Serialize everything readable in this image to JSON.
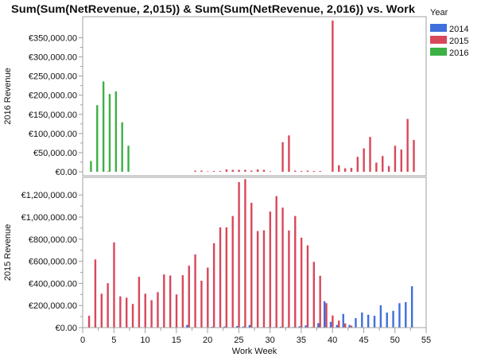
{
  "chart_data": {
    "type": "bar",
    "title": "Sum(Sum(NetRevenue, 2,015)) & Sum(Sum(NetRevenue, 2,016)) vs. Work",
    "xlabel": "Work Week",
    "xlim": [
      0,
      55
    ],
    "xticks": [
      "0",
      "5",
      "10",
      "15",
      "20",
      "25",
      "30",
      "35",
      "40",
      "45",
      "50",
      "55"
    ],
    "legend": {
      "title": "Year",
      "placement": "right",
      "items": [
        {
          "label": "2014",
          "color": "#3f6fdc"
        },
        {
          "label": "2015",
          "color": "#d8475a"
        },
        {
          "label": "2016",
          "color": "#3cb044"
        }
      ]
    },
    "panels": [
      {
        "ylabel": "2016 Revenue",
        "ylim": [
          0,
          405000
        ],
        "yticks": [
          "€0.00",
          "€50,000.00",
          "€100,000.00",
          "€150,000.00",
          "€200,000.00",
          "€250,000.00",
          "€300,000.00",
          "€350,000.00"
        ],
        "ytick_values": [
          0,
          50000,
          100000,
          150000,
          200000,
          250000,
          300000,
          350000
        ],
        "series": [
          {
            "name": "2015",
            "color": "#d8475a",
            "offset": 0,
            "x": [
              4,
              18,
              19,
              20,
              21,
              22,
              23,
              24,
              25,
              26,
              27,
              28,
              29,
              30,
              32,
              33,
              34,
              35,
              36,
              37,
              38,
              40,
              41,
              42,
              43,
              44,
              45,
              46,
              47,
              48,
              49,
              50,
              51,
              52,
              53
            ],
            "values": [
              1000,
              3000,
              3000,
              1000,
              2000,
              2000,
              6000,
              5000,
              5000,
              5000,
              3000,
              6000,
              5000,
              1000,
              77000,
              95000,
              3000,
              2000,
              3000,
              2000,
              2000,
              395000,
              17000,
              9000,
              10000,
              39000,
              61000,
              91000,
              24000,
              41000,
              15000,
              68000,
              58000,
              138000,
              83000
            ]
          },
          {
            "name": "2016",
            "color": "#3cb044",
            "offset": 0.3,
            "x": [
              1,
              2,
              3,
              4,
              5,
              6,
              7
            ],
            "values": [
              28000,
              174000,
              236000,
              203000,
              210000,
              129000,
              68000
            ]
          }
        ]
      },
      {
        "ylabel": "2015 Revenue",
        "ylim": [
          0,
          1360000
        ],
        "yticks": [
          "€0.00",
          "€200,000.00",
          "€400,000.00",
          "€600,000.00",
          "€800,000.00",
          "€1,000,000.00",
          "€1,200,000.00"
        ],
        "ytick_values": [
          0,
          200000,
          400000,
          600000,
          800000,
          1000000,
          1200000
        ],
        "series": [
          {
            "name": "2015",
            "color": "#d8475a",
            "offset": 0,
            "x": [
              1,
              2,
              3,
              4,
              5,
              6,
              7,
              8,
              9,
              10,
              11,
              12,
              13,
              14,
              15,
              16,
              17,
              18,
              19,
              20,
              21,
              22,
              23,
              24,
              25,
              26,
              27,
              28,
              29,
              30,
              31,
              32,
              33,
              34,
              35,
              36,
              37,
              38,
              39,
              40,
              41,
              42,
              43
            ],
            "values": [
              107000,
              617000,
              307000,
              402000,
              771000,
              283000,
              271000,
              214000,
              460000,
              307000,
              248000,
              321000,
              481000,
              471000,
              300000,
              474000,
              560000,
              662000,
              424000,
              543000,
              764000,
              907000,
              907000,
              1010000,
              1317000,
              1343000,
              1129000,
              874000,
              881000,
              1050000,
              1190000,
              1086000,
              879000,
              1010000,
              814000,
              745000,
              595000,
              469000,
              221000,
              110000,
              64000,
              38000,
              17000
            ]
          },
          {
            "name": "2014",
            "color": "#3f6fdc",
            "offset": -0.3,
            "x": [
              17,
              21,
              23,
              25,
              26,
              27,
              29,
              30,
              31,
              32,
              33,
              34,
              35,
              36,
              37,
              38,
              39,
              40,
              41,
              42,
              43,
              44,
              45,
              46,
              47,
              48,
              49,
              50,
              51,
              52,
              53
            ],
            "values": [
              24000,
              8000,
              10000,
              14000,
              10000,
              24000,
              4000,
              5000,
              5000,
              8000,
              5000,
              5000,
              12000,
              20000,
              5000,
              40000,
              238000,
              52000,
              24000,
              124000,
              24000,
              86000,
              136000,
              117000,
              107000,
              202000,
              136000,
              152000,
              221000,
              231000,
              374000
            ]
          }
        ]
      }
    ]
  }
}
